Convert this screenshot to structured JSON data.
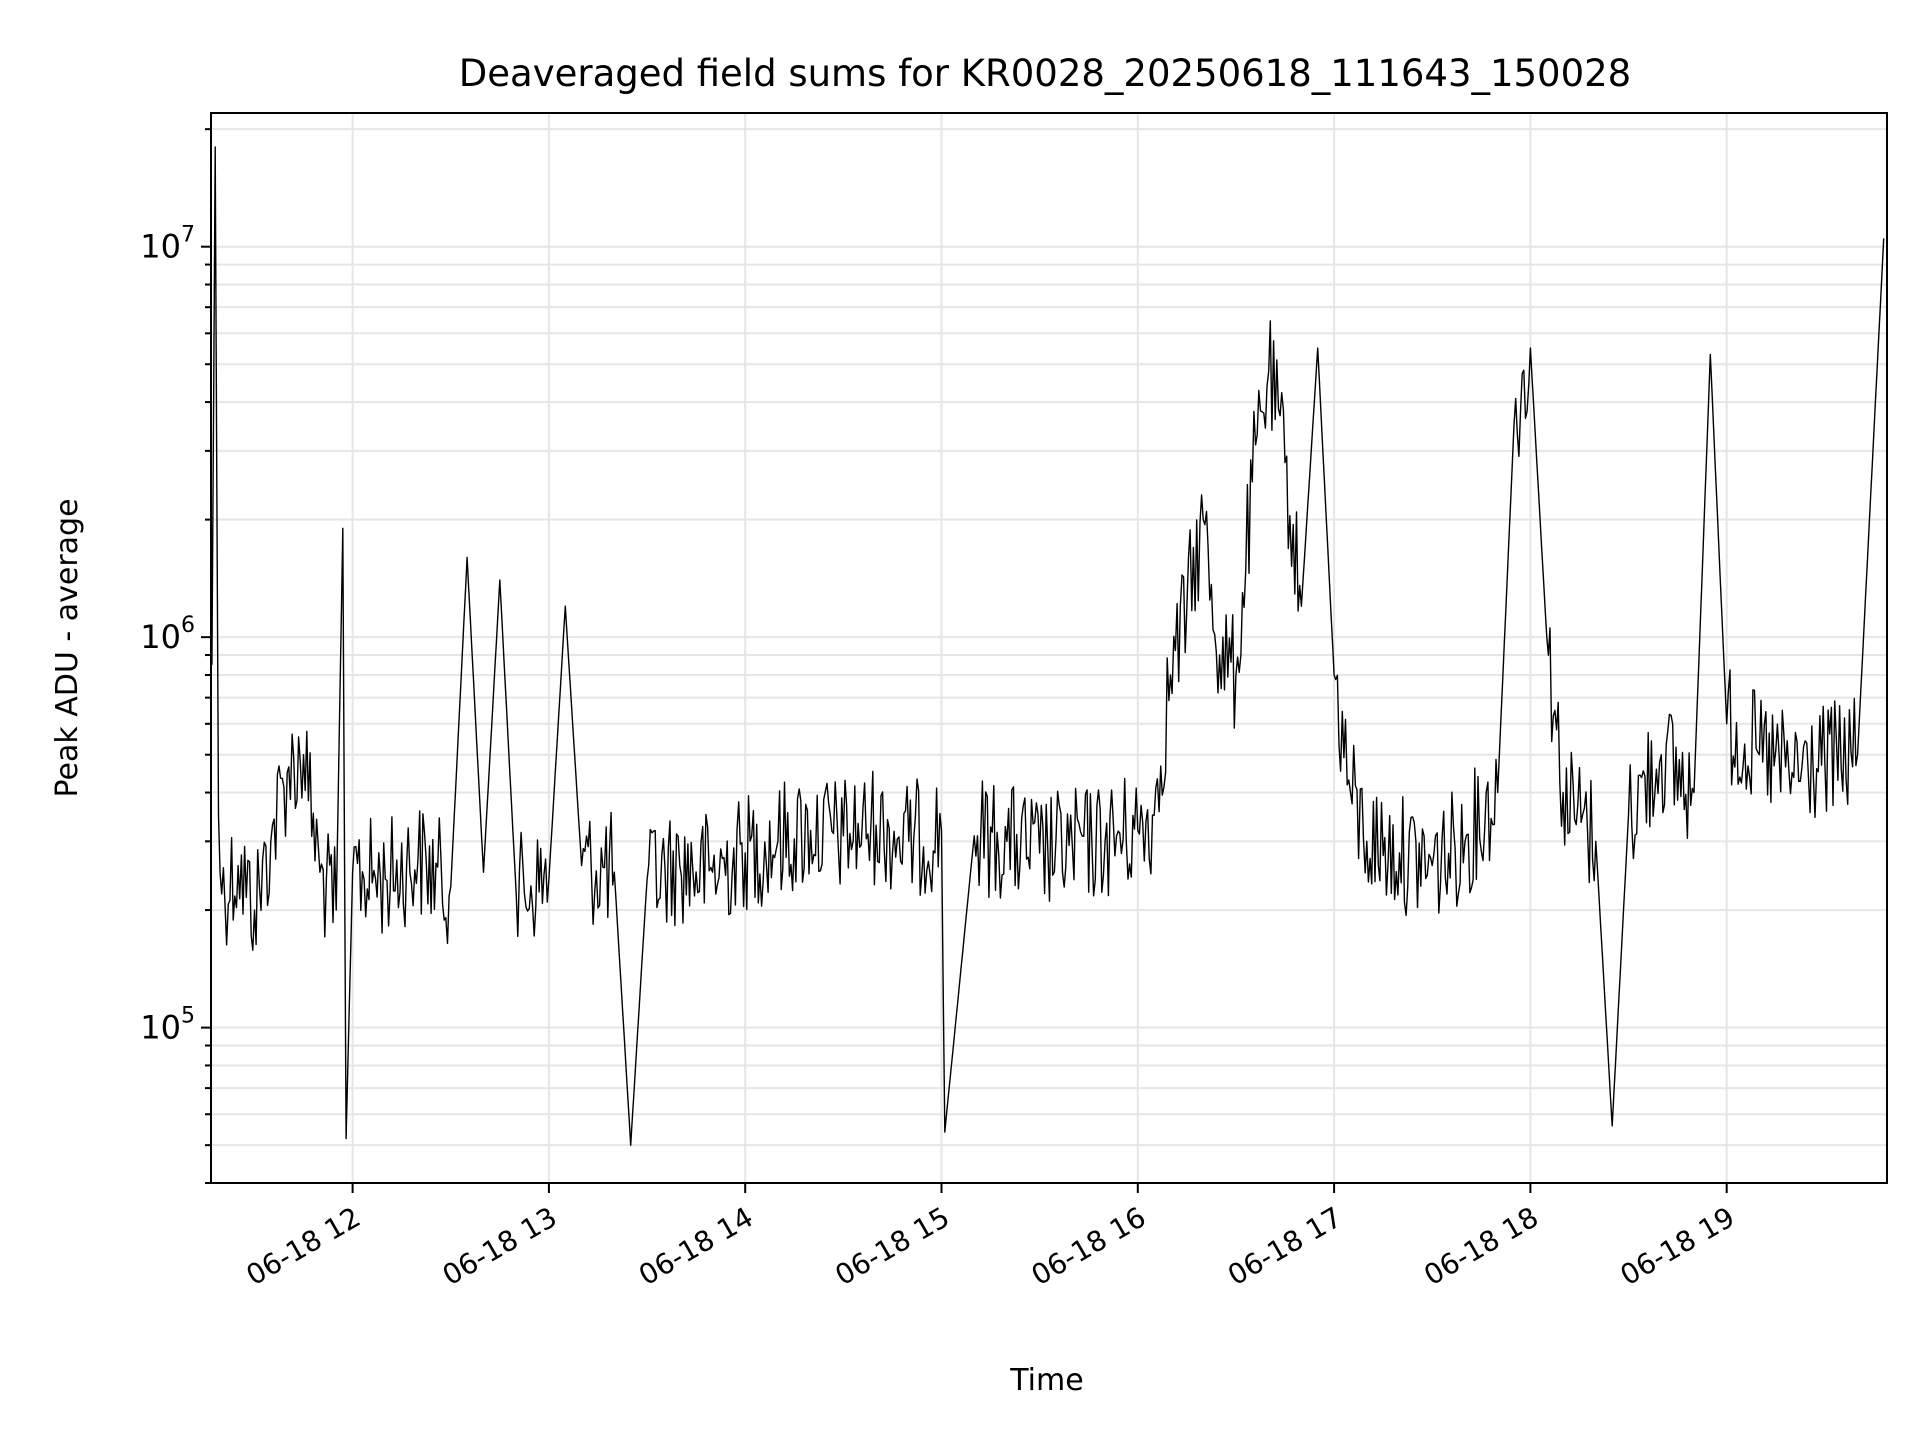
{
  "chart_data": {
    "type": "line",
    "title": "Deaveraged field sums for KR0028_20250618_111643_150028",
    "xlabel": "Time",
    "ylabel": "Peak ADU - average",
    "yscale": "log",
    "ylim": [
      40000,
      22000000
    ],
    "xlim": [
      "2025-06-18 11:16:43",
      "2025-06-18 19:49:00"
    ],
    "grid": true,
    "colors": {
      "line": "#000000",
      "grid": "#e6e6e6",
      "axes": "#000000"
    },
    "x_ticks": [
      {
        "label": "06-18 12",
        "time": "2025-06-18 12:00"
      },
      {
        "label": "06-18 13",
        "time": "2025-06-18 13:00"
      },
      {
        "label": "06-18 14",
        "time": "2025-06-18 14:00"
      },
      {
        "label": "06-18 15",
        "time": "2025-06-18 15:00"
      },
      {
        "label": "06-18 16",
        "time": "2025-06-18 16:00"
      },
      {
        "label": "06-18 17",
        "time": "2025-06-18 17:00"
      },
      {
        "label": "06-18 18",
        "time": "2025-06-18 18:00"
      },
      {
        "label": "06-18 19",
        "time": "2025-06-18 19:00"
      }
    ],
    "y_ticks": [
      {
        "mantissa": "10",
        "exponent": "5",
        "value": 100000
      },
      {
        "mantissa": "10",
        "exponent": "6",
        "value": 1000000
      },
      {
        "mantissa": "10",
        "exponent": "7",
        "value": 10000000
      }
    ],
    "series": [
      {
        "points": [
          [
            "2025-06-18 11:17",
            850000
          ],
          [
            "2025-06-18 11:18",
            18000000
          ],
          [
            "2025-06-18 11:19",
            350000
          ],
          [
            "2025-06-18 11:20",
            220000
          ],
          [
            "2025-06-18 11:25",
            260000
          ],
          [
            "2025-06-18 11:30",
            200000
          ],
          [
            "2025-06-18 11:35",
            300000
          ],
          [
            "2025-06-18 11:40",
            450000
          ],
          [
            "2025-06-18 11:45",
            500000
          ],
          [
            "2025-06-18 11:50",
            250000
          ],
          [
            "2025-06-18 11:55",
            200000
          ],
          [
            "2025-06-18 11:57",
            1900000
          ],
          [
            "2025-06-18 11:58",
            52000
          ],
          [
            "2025-06-18 12:00",
            250000
          ],
          [
            "2025-06-18 12:10",
            240000
          ],
          [
            "2025-06-18 12:20",
            270000
          ],
          [
            "2025-06-18 12:30",
            230000
          ],
          [
            "2025-06-18 12:35",
            1600000
          ],
          [
            "2025-06-18 12:40",
            250000
          ],
          [
            "2025-06-18 12:45",
            1400000
          ],
          [
            "2025-06-18 12:50",
            220000
          ],
          [
            "2025-06-18 13:00",
            240000
          ],
          [
            "2025-06-18 13:05",
            1200000
          ],
          [
            "2025-06-18 13:10",
            260000
          ],
          [
            "2025-06-18 13:20",
            250000
          ],
          [
            "2025-06-18 13:25",
            50000
          ],
          [
            "2025-06-18 13:30",
            240000
          ],
          [
            "2025-06-18 13:40",
            260000
          ],
          [
            "2025-06-18 13:50",
            250000
          ],
          [
            "2025-06-18 14:00",
            280000
          ],
          [
            "2025-06-18 14:10",
            300000
          ],
          [
            "2025-06-18 14:20",
            320000
          ],
          [
            "2025-06-18 14:30",
            310000
          ],
          [
            "2025-06-18 14:40",
            330000
          ],
          [
            "2025-06-18 14:50",
            300000
          ],
          [
            "2025-06-18 15:00",
            320000
          ],
          [
            "2025-06-18 15:01",
            54000
          ],
          [
            "2025-06-18 15:10",
            310000
          ],
          [
            "2025-06-18 15:20",
            300000
          ],
          [
            "2025-06-18 15:30",
            280000
          ],
          [
            "2025-06-18 15:40",
            290000
          ],
          [
            "2025-06-18 15:50",
            300000
          ],
          [
            "2025-06-18 16:00",
            320000
          ],
          [
            "2025-06-18 16:05",
            350000
          ],
          [
            "2025-06-18 16:10",
            800000
          ],
          [
            "2025-06-18 16:15",
            1200000
          ],
          [
            "2025-06-18 16:20",
            2000000
          ],
          [
            "2025-06-18 16:25",
            900000
          ],
          [
            "2025-06-18 16:30",
            800000
          ],
          [
            "2025-06-18 16:35",
            2500000
          ],
          [
            "2025-06-18 16:40",
            4800000
          ],
          [
            "2025-06-18 16:45",
            2800000
          ],
          [
            "2025-06-18 16:50",
            1200000
          ],
          [
            "2025-06-18 16:55",
            5500000
          ],
          [
            "2025-06-18 17:00",
            800000
          ],
          [
            "2025-06-18 17:05",
            400000
          ],
          [
            "2025-06-18 17:10",
            300000
          ],
          [
            "2025-06-18 17:20",
            280000
          ],
          [
            "2025-06-18 17:30",
            260000
          ],
          [
            "2025-06-18 17:40",
            300000
          ],
          [
            "2025-06-18 17:50",
            400000
          ],
          [
            "2025-06-18 17:55",
            3500000
          ],
          [
            "2025-06-18 18:00",
            5500000
          ],
          [
            "2025-06-18 18:05",
            1000000
          ],
          [
            "2025-06-18 18:10",
            400000
          ],
          [
            "2025-06-18 18:20",
            300000
          ],
          [
            "2025-06-18 18:25",
            56000
          ],
          [
            "2025-06-18 18:30",
            350000
          ],
          [
            "2025-06-18 18:40",
            500000
          ],
          [
            "2025-06-18 18:50",
            400000
          ],
          [
            "2025-06-18 18:55",
            5300000
          ],
          [
            "2025-06-18 19:00",
            600000
          ],
          [
            "2025-06-18 19:10",
            500000
          ],
          [
            "2025-06-18 19:20",
            450000
          ],
          [
            "2025-06-18 19:30",
            480000
          ],
          [
            "2025-06-18 19:40",
            500000
          ],
          [
            "2025-06-18 19:48",
            10500000
          ]
        ]
      }
    ]
  }
}
